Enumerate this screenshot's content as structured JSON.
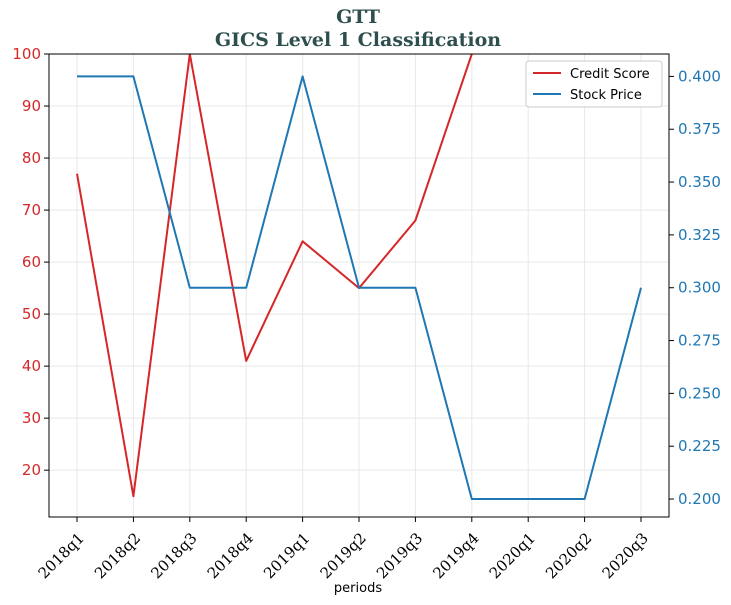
{
  "chart_data": {
    "type": "line",
    "title": "GTT",
    "subtitle": "GICS Level 1 Classification",
    "xlabel": "periods",
    "categories": [
      "2018q1",
      "2018q2",
      "2018q3",
      "2018q4",
      "2019q1",
      "2019q2",
      "2019q3",
      "2019q4",
      "2020q1",
      "2020q2",
      "2020q3"
    ],
    "y_left": {
      "ylim": [
        11,
        100
      ],
      "ticks": [
        "20",
        "30",
        "40",
        "50",
        "60",
        "70",
        "80",
        "90",
        "100"
      ],
      "color": "#d62728"
    },
    "y_right": {
      "ylim": [
        0.1915,
        0.4106
      ],
      "ticks": [
        "0.200",
        "0.225",
        "0.250",
        "0.275",
        "0.300",
        "0.325",
        "0.350",
        "0.375",
        "0.400"
      ],
      "color": "#1f77b4"
    },
    "series": [
      {
        "name": "Credit Score",
        "axis": "left",
        "color": "#d62728",
        "values": [
          77,
          15,
          100,
          41,
          64,
          55,
          68,
          100,
          null,
          null,
          null
        ]
      },
      {
        "name": "Stock Price",
        "axis": "right",
        "color": "#1f77b4",
        "values": [
          0.4,
          0.4,
          0.3,
          0.3,
          0.4,
          0.3,
          0.3,
          0.2,
          0.2,
          0.2,
          0.3
        ]
      }
    ],
    "grid": true,
    "legend_position": "top-right"
  }
}
